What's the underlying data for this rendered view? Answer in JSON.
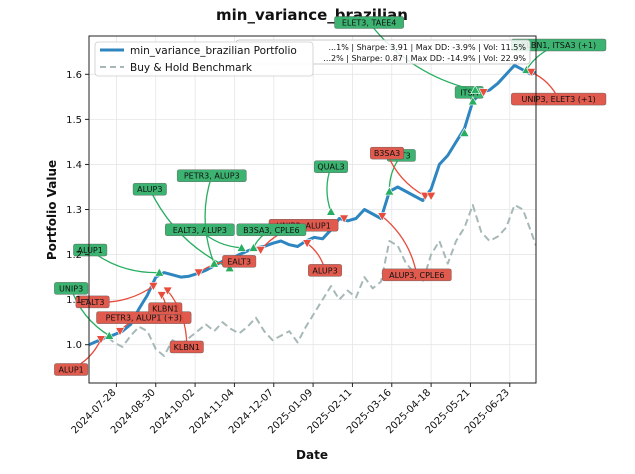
{
  "chart_data": {
    "type": "line",
    "title": "min_variance_brazilian",
    "xlabel": "Date",
    "ylabel": "Portfolio Value",
    "x_range": [
      "2024-07-05",
      "2025-07-15"
    ],
    "ylim": [
      0.915,
      1.685
    ],
    "x_ticks": [
      "2024-07-28",
      "2024-08-30",
      "2024-10-02",
      "2024-11-04",
      "2024-12-07",
      "2025-01-09",
      "2025-02-11",
      "2025-03-16",
      "2025-04-18",
      "2025-05-21",
      "2025-06-23"
    ],
    "y_ticks": [
      1.0,
      1.1,
      1.2,
      1.3,
      1.4,
      1.5,
      1.6
    ],
    "y_tick_labels": [
      "1.0",
      "1.1",
      "1.2",
      "1.3",
      "1.4",
      "1.5",
      "1.6"
    ],
    "grid": true,
    "legend_position": "top-left",
    "colors": {
      "portfolio": "#2e86c1",
      "benchmark": "#a7b8b8",
      "buy": "#27ae60",
      "sell": "#e74c3c",
      "buy_label_bg": "#3cb371",
      "sell_label_bg": "#e05a4e"
    },
    "series": [
      {
        "name": "min_variance_brazilian Portfolio",
        "style": "solid",
        "points": [
          [
            "2024-07-05",
            1.0
          ],
          [
            "2024-07-12",
            1.008
          ],
          [
            "2024-07-19",
            1.015
          ],
          [
            "2024-07-26",
            1.022
          ],
          [
            "2024-08-02",
            1.03
          ],
          [
            "2024-08-09",
            1.045
          ],
          [
            "2024-08-16",
            1.08
          ],
          [
            "2024-08-23",
            1.11
          ],
          [
            "2024-08-30",
            1.15
          ],
          [
            "2024-09-06",
            1.16
          ],
          [
            "2024-09-13",
            1.155
          ],
          [
            "2024-09-20",
            1.15
          ],
          [
            "2024-09-27",
            1.152
          ],
          [
            "2024-10-04",
            1.158
          ],
          [
            "2024-10-11",
            1.165
          ],
          [
            "2024-10-18",
            1.175
          ],
          [
            "2024-10-25",
            1.185
          ],
          [
            "2024-11-01",
            1.19
          ],
          [
            "2024-11-08",
            1.2
          ],
          [
            "2024-11-15",
            1.208
          ],
          [
            "2024-11-22",
            1.215
          ],
          [
            "2024-11-29",
            1.218
          ],
          [
            "2024-12-06",
            1.225
          ],
          [
            "2024-12-13",
            1.23
          ],
          [
            "2024-12-20",
            1.222
          ],
          [
            "2024-12-27",
            1.218
          ],
          [
            "2025-01-03",
            1.23
          ],
          [
            "2025-01-10",
            1.238
          ],
          [
            "2025-01-17",
            1.235
          ],
          [
            "2025-01-24",
            1.255
          ],
          [
            "2025-01-31",
            1.28
          ],
          [
            "2025-02-07",
            1.275
          ],
          [
            "2025-02-14",
            1.28
          ],
          [
            "2025-02-21",
            1.3
          ],
          [
            "2025-02-28",
            1.29
          ],
          [
            "2025-03-07",
            1.28
          ],
          [
            "2025-03-14",
            1.34
          ],
          [
            "2025-03-21",
            1.35
          ],
          [
            "2025-03-28",
            1.34
          ],
          [
            "2025-04-04",
            1.33
          ],
          [
            "2025-04-11",
            1.32
          ],
          [
            "2025-04-18",
            1.345
          ],
          [
            "2025-04-25",
            1.4
          ],
          [
            "2025-05-02",
            1.42
          ],
          [
            "2025-05-09",
            1.45
          ],
          [
            "2025-05-16",
            1.48
          ],
          [
            "2025-05-23",
            1.54
          ],
          [
            "2025-05-30",
            1.56
          ],
          [
            "2025-06-06",
            1.565
          ],
          [
            "2025-06-13",
            1.58
          ],
          [
            "2025-06-20",
            1.6
          ],
          [
            "2025-06-27",
            1.62
          ],
          [
            "2025-07-04",
            1.61
          ],
          [
            "2025-07-11",
            1.6
          ],
          [
            "2025-07-15",
            1.605
          ]
        ]
      },
      {
        "name": "Buy & Hold Benchmark",
        "style": "dashed",
        "points": [
          [
            "2024-07-05",
            1.0
          ],
          [
            "2024-07-12",
            1.01
          ],
          [
            "2024-07-19",
            1.02
          ],
          [
            "2024-07-26",
            1.005
          ],
          [
            "2024-08-02",
            0.995
          ],
          [
            "2024-08-09",
            1.02
          ],
          [
            "2024-08-16",
            1.04
          ],
          [
            "2024-08-23",
            1.03
          ],
          [
            "2024-08-30",
            0.99
          ],
          [
            "2024-09-06",
            0.975
          ],
          [
            "2024-09-13",
            1.01
          ],
          [
            "2024-09-20",
            1.0
          ],
          [
            "2024-09-27",
            1.015
          ],
          [
            "2024-10-04",
            1.03
          ],
          [
            "2024-10-11",
            1.045
          ],
          [
            "2024-10-18",
            1.03
          ],
          [
            "2024-10-25",
            1.05
          ],
          [
            "2024-11-01",
            1.035
          ],
          [
            "2024-11-08",
            1.025
          ],
          [
            "2024-11-15",
            1.04
          ],
          [
            "2024-11-22",
            1.06
          ],
          [
            "2024-11-29",
            1.03
          ],
          [
            "2024-12-06",
            1.01
          ],
          [
            "2024-12-13",
            1.02
          ],
          [
            "2024-12-20",
            1.03
          ],
          [
            "2024-12-27",
            1.005
          ],
          [
            "2025-01-03",
            1.04
          ],
          [
            "2025-01-10",
            1.07
          ],
          [
            "2025-01-17",
            1.1
          ],
          [
            "2025-01-24",
            1.13
          ],
          [
            "2025-01-31",
            1.1
          ],
          [
            "2025-02-07",
            1.12
          ],
          [
            "2025-02-14",
            1.105
          ],
          [
            "2025-02-21",
            1.15
          ],
          [
            "2025-02-28",
            1.125
          ],
          [
            "2025-03-07",
            1.14
          ],
          [
            "2025-03-14",
            1.23
          ],
          [
            "2025-03-21",
            1.22
          ],
          [
            "2025-03-28",
            1.18
          ],
          [
            "2025-04-04",
            1.16
          ],
          [
            "2025-04-11",
            1.14
          ],
          [
            "2025-04-18",
            1.2
          ],
          [
            "2025-04-25",
            1.23
          ],
          [
            "2025-05-02",
            1.18
          ],
          [
            "2025-05-09",
            1.23
          ],
          [
            "2025-05-16",
            1.26
          ],
          [
            "2025-05-23",
            1.31
          ],
          [
            "2025-05-30",
            1.25
          ],
          [
            "2025-06-06",
            1.23
          ],
          [
            "2025-06-13",
            1.24
          ],
          [
            "2025-06-20",
            1.26
          ],
          [
            "2025-06-27",
            1.31
          ],
          [
            "2025-07-04",
            1.3
          ],
          [
            "2025-07-11",
            1.25
          ],
          [
            "2025-07-15",
            1.22
          ]
        ]
      }
    ],
    "stats_text": [
      "...1% | Sharpe: 3.91 | Max DD: -3.9% | Vol: 11.5%",
      "...2% | Sharpe: 0.87 | Max DD: -14.9% | Vol: 22.9%"
    ],
    "trades": [
      {
        "type": "sell",
        "x": "2024-07-15",
        "y": 1.012,
        "label": "ALUP1",
        "lx": "2024-06-20",
        "ly": 0.945
      },
      {
        "type": "buy",
        "x": "2024-07-22",
        "y": 1.02,
        "label": "UNIP3",
        "lx": "2024-06-20",
        "ly": 1.125
      },
      {
        "type": "sell",
        "x": "2024-07-31",
        "y": 1.03,
        "label": "PETR3, ALUP1 (+3)",
        "lx": "2024-08-20",
        "ly": 1.06
      },
      {
        "type": "sell",
        "x": "2024-08-28",
        "y": 1.13,
        "label": "EALT3",
        "lx": "2024-07-08",
        "ly": 1.095
      },
      {
        "type": "sell",
        "x": "2024-09-04",
        "y": 1.11,
        "label": "KLBN1",
        "lx": "2024-09-07",
        "ly": 1.08
      },
      {
        "type": "sell",
        "x": "2024-09-09",
        "y": 1.12,
        "label": "KLBN1",
        "lx": "2024-09-25",
        "ly": 0.995
      },
      {
        "type": "buy",
        "x": "2024-09-02",
        "y": 1.16,
        "label": "ALUP1",
        "lx": "2024-07-06",
        "ly": 1.21
      },
      {
        "type": "buy",
        "x": "2024-10-31",
        "y": 1.17,
        "label": "ALUP3",
        "lx": "2024-08-25",
        "ly": 1.345
      },
      {
        "type": "buy",
        "x": "2024-11-10",
        "y": 1.215,
        "label": "EALT3, ALUP3",
        "lx": "2024-10-06",
        "ly": 1.255
      },
      {
        "type": "sell",
        "x": "2024-10-05",
        "y": 1.16,
        "label": "EALT3",
        "lx": "2024-11-08",
        "ly": 1.185
      },
      {
        "type": "sell",
        "x": "2024-11-26",
        "y": 1.21,
        "label": "UNIP3, ALUP1",
        "lx": "2025-01-01",
        "ly": 1.265
      },
      {
        "type": "buy",
        "x": "2024-11-20",
        "y": 1.215,
        "label": "B3SA3, CPLE6",
        "lx": "2024-12-05",
        "ly": 1.255
      },
      {
        "type": "buy",
        "x": "2024-10-18",
        "y": 1.18,
        "label": "PETR3, ALUP3",
        "lx": "2024-10-16",
        "ly": 1.375
      },
      {
        "type": "sell",
        "x": "2025-01-04",
        "y": 1.225,
        "label": "ALUP3",
        "lx": "2025-01-19",
        "ly": 1.165
      },
      {
        "type": "buy",
        "x": "2025-01-24",
        "y": 1.295,
        "label": "QUAL3",
        "lx": "2025-01-24",
        "ly": 1.395
      },
      {
        "type": "sell",
        "x": "2025-02-04",
        "y": 1.28,
        "label": "",
        "lx": "2025-02-04",
        "ly": 1.28
      },
      {
        "type": "sell",
        "x": "2025-03-08",
        "y": 1.285,
        "label": "ALUP3, CPLE6",
        "lx": "2025-04-06",
        "ly": 1.155
      },
      {
        "type": "buy",
        "x": "2025-03-14",
        "y": 1.34,
        "label": "ALT3",
        "lx": "2025-03-24",
        "ly": 1.42
      },
      {
        "type": "sell",
        "x": "2025-04-13",
        "y": 1.33,
        "label": "B3SA3",
        "lx": "2025-03-12",
        "ly": 1.425
      },
      {
        "type": "sell",
        "x": "2025-04-18",
        "y": 1.33,
        "label": "",
        "lx": "2025-04-18",
        "ly": 1.33
      },
      {
        "type": "buy",
        "x": "2025-05-16",
        "y": 1.47,
        "label": "",
        "lx": "2025-05-16",
        "ly": 1.47
      },
      {
        "type": "buy",
        "x": "2025-05-23",
        "y": 1.54,
        "label": "ITSA",
        "lx": "2025-05-20",
        "ly": 1.56
      },
      {
        "type": "sell",
        "x": "2025-06-01",
        "y": 1.56,
        "label": "",
        "lx": "2025-06-01",
        "ly": 1.56
      },
      {
        "type": "buy",
        "x": "2025-05-25",
        "y": 1.565,
        "label": "ELET3, TAEE4",
        "lx": "2025-02-25",
        "ly": 1.715
      },
      {
        "type": "buy",
        "x": "2025-07-07",
        "y": 1.61,
        "label": "KLBN1, ITSA3 (+1)",
        "lx": "2025-08-03",
        "ly": 1.665
      },
      {
        "type": "sell",
        "x": "2025-07-11",
        "y": 1.605,
        "label": "UNIP3, ELET3 (+1)",
        "lx": "2025-08-03",
        "ly": 1.545
      }
    ]
  }
}
